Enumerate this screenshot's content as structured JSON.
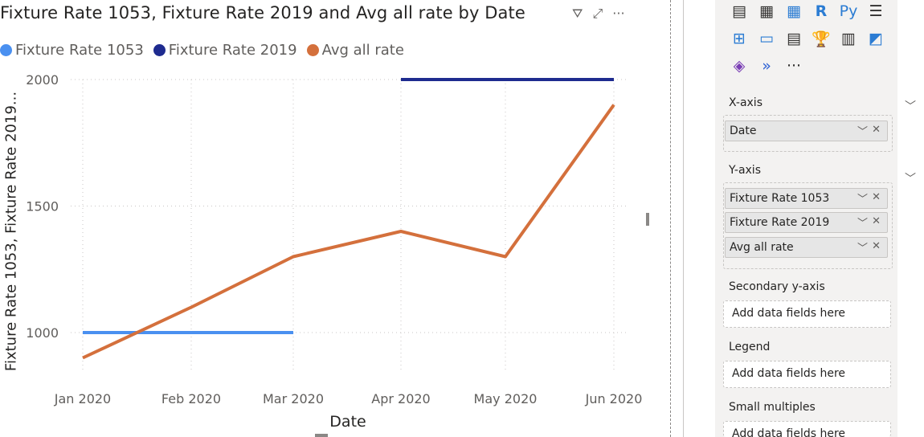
{
  "visual": {
    "title": "Fixture Rate 1053, Fixture Rate 2019 and Avg all rate by Date",
    "header_icons": [
      {
        "name": "filter-icon",
        "glyph": "⛛"
      },
      {
        "name": "focus-mode-icon",
        "glyph": "⤢"
      },
      {
        "name": "more-options-icon",
        "glyph": "···"
      }
    ],
    "legend": [
      {
        "label": "Fixture Rate 1053",
        "color": "#4a90f0"
      },
      {
        "label": "Fixture Rate 2019",
        "color": "#1e2b8f"
      },
      {
        "label": "Avg all rate",
        "color": "#d4703c"
      }
    ]
  },
  "chart_data": {
    "type": "line",
    "title": "Fixture Rate 1053, Fixture Rate 2019 and Avg all rate by Date",
    "xlabel": "Date",
    "ylabel": "Fixture Rate 1053, Fixture Rate 2019...",
    "categories": [
      "Jan 2020",
      "Feb 2020",
      "Mar 2020",
      "Apr 2020",
      "May 2020",
      "Jun 2020"
    ],
    "ylim": [
      800,
      2000
    ],
    "yticks": [
      1000,
      1500,
      2000
    ],
    "grid": true,
    "legend_position": "top-left",
    "series": [
      {
        "name": "Fixture Rate 1053",
        "color": "#4a90f0",
        "values": [
          1000,
          1000,
          1000,
          null,
          null,
          null
        ]
      },
      {
        "name": "Fixture Rate 2019",
        "color": "#1e2b8f",
        "values": [
          null,
          null,
          null,
          2000,
          2000,
          2000
        ]
      },
      {
        "name": "Avg all rate",
        "color": "#d4703c",
        "values": [
          900,
          1100,
          1300,
          1400,
          1300,
          1900
        ]
      }
    ]
  },
  "pane": {
    "viz_icons": [
      "stacked-column-icon",
      "table-icon",
      "matrix-icon",
      "r-visual-icon",
      "python-visual-icon",
      "key-influencers-icon",
      "decomposition-tree-icon",
      "qa-icon",
      "smart-narrative-icon",
      "goals-icon",
      "paginated-report-icon",
      "power-apps-icon",
      "power-automate-icon",
      "chevron-visual-icon",
      "more-visuals-icon"
    ],
    "viz_glyphs": [
      "▤",
      "▦",
      "▦",
      "R",
      "Py",
      "☰",
      "⊞",
      "▭",
      "▤",
      "🏆",
      "▥",
      "◩",
      "◈",
      "»",
      "···"
    ],
    "x_axis": {
      "label": "X-axis",
      "fields": [
        "Date"
      ]
    },
    "y_axis": {
      "label": "Y-axis",
      "fields": [
        "Fixture Rate 1053",
        "Fixture Rate 2019",
        "Avg all rate"
      ]
    },
    "secondary_y": {
      "label": "Secondary y-axis",
      "placeholder": "Add data fields here"
    },
    "legend": {
      "label": "Legend",
      "placeholder": "Add data fields here"
    },
    "small_multiples": {
      "label": "Small multiples",
      "placeholder": "Add data fields here"
    }
  }
}
